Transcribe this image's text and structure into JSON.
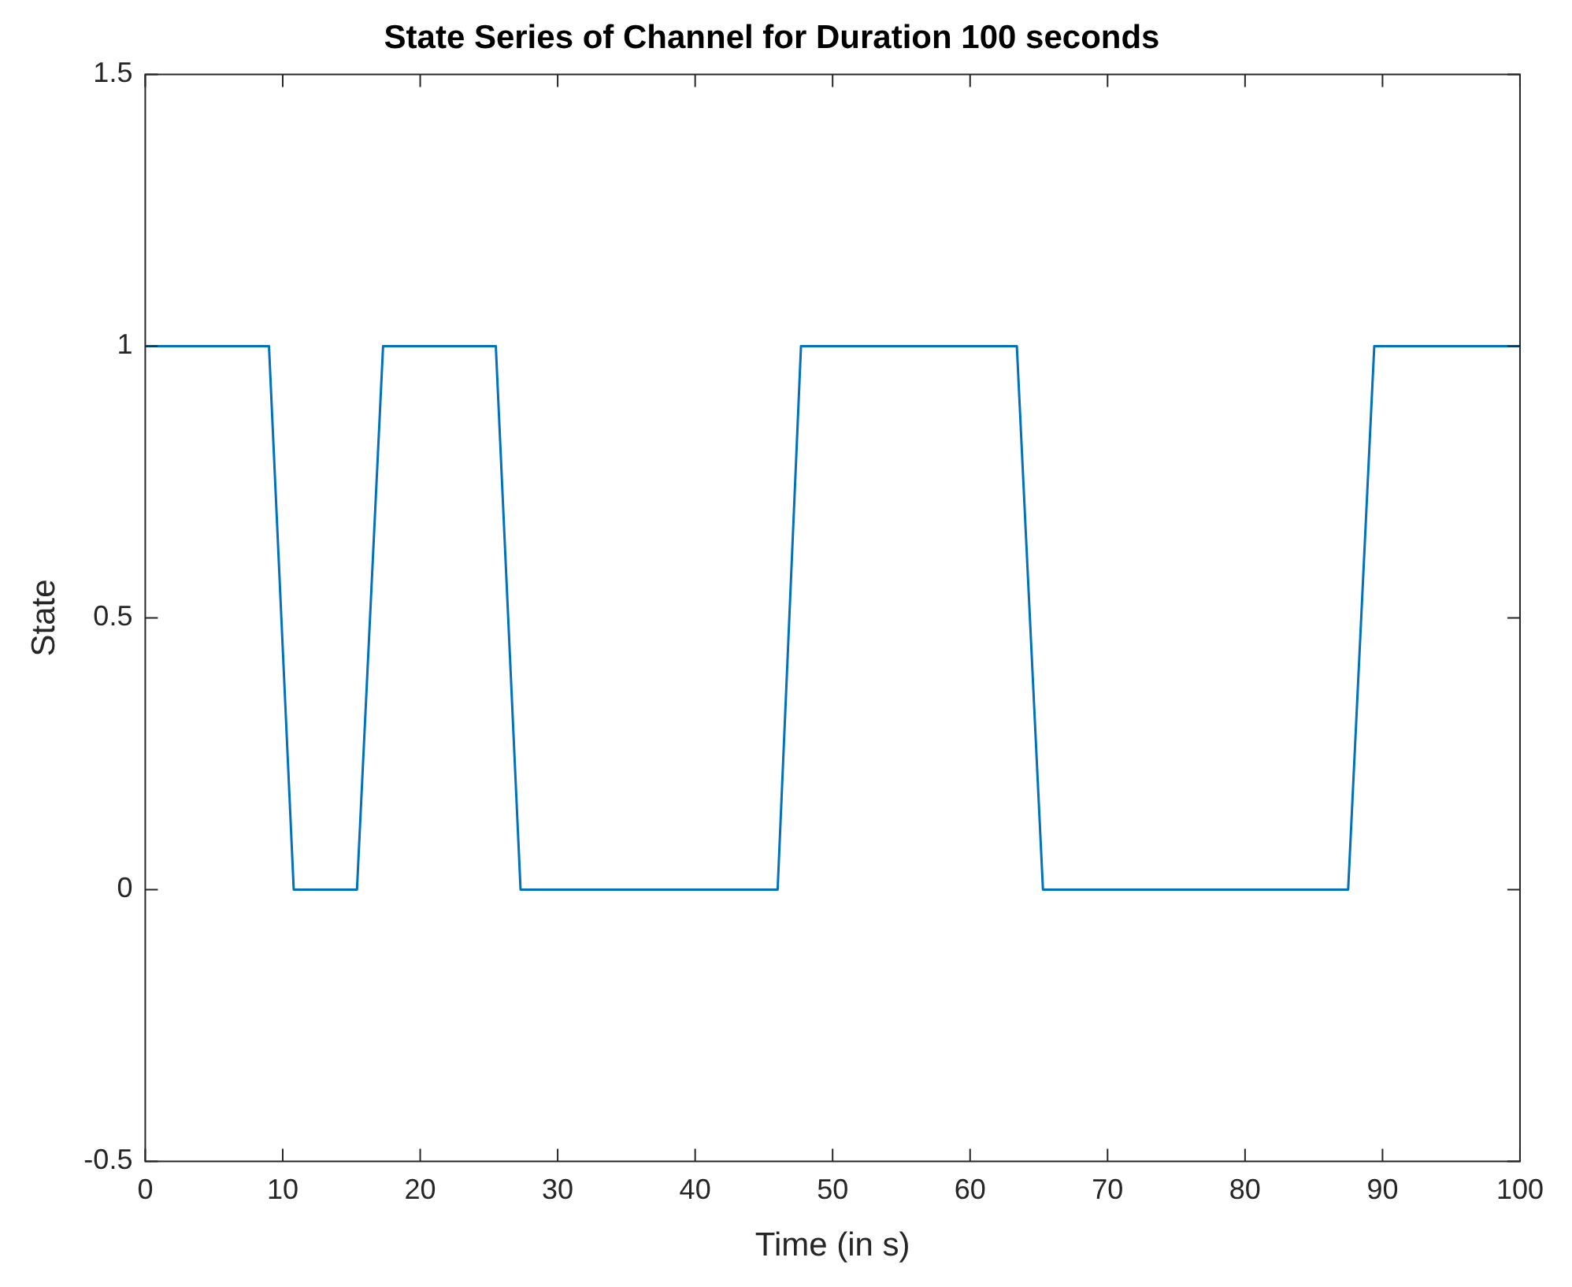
{
  "chart_data": {
    "type": "line",
    "title": "State Series of Channel for Duration 100 seconds",
    "xlabel": "Time (in s)",
    "ylabel": "State",
    "series": [
      {
        "color": "#0072bd",
        "x": [
          0,
          9,
          10.8,
          15.4,
          17.3,
          25.5,
          27.3,
          46,
          47.7,
          63.4,
          65.3,
          87.5,
          89.4,
          100
        ],
        "values": [
          1,
          1,
          0,
          0,
          1,
          1,
          0,
          0,
          1,
          1,
          0,
          0,
          1,
          1
        ]
      }
    ],
    "xlim": [
      0,
      100
    ],
    "xticks": [
      0,
      10,
      20,
      30,
      40,
      50,
      60,
      70,
      80,
      90,
      100
    ],
    "ylim": [
      -0.5,
      1.5
    ],
    "yticks": [
      -0.5,
      0,
      0.5,
      1,
      1.5
    ],
    "grid": false,
    "legend": false,
    "marker": "none",
    "line_style": "solid"
  }
}
